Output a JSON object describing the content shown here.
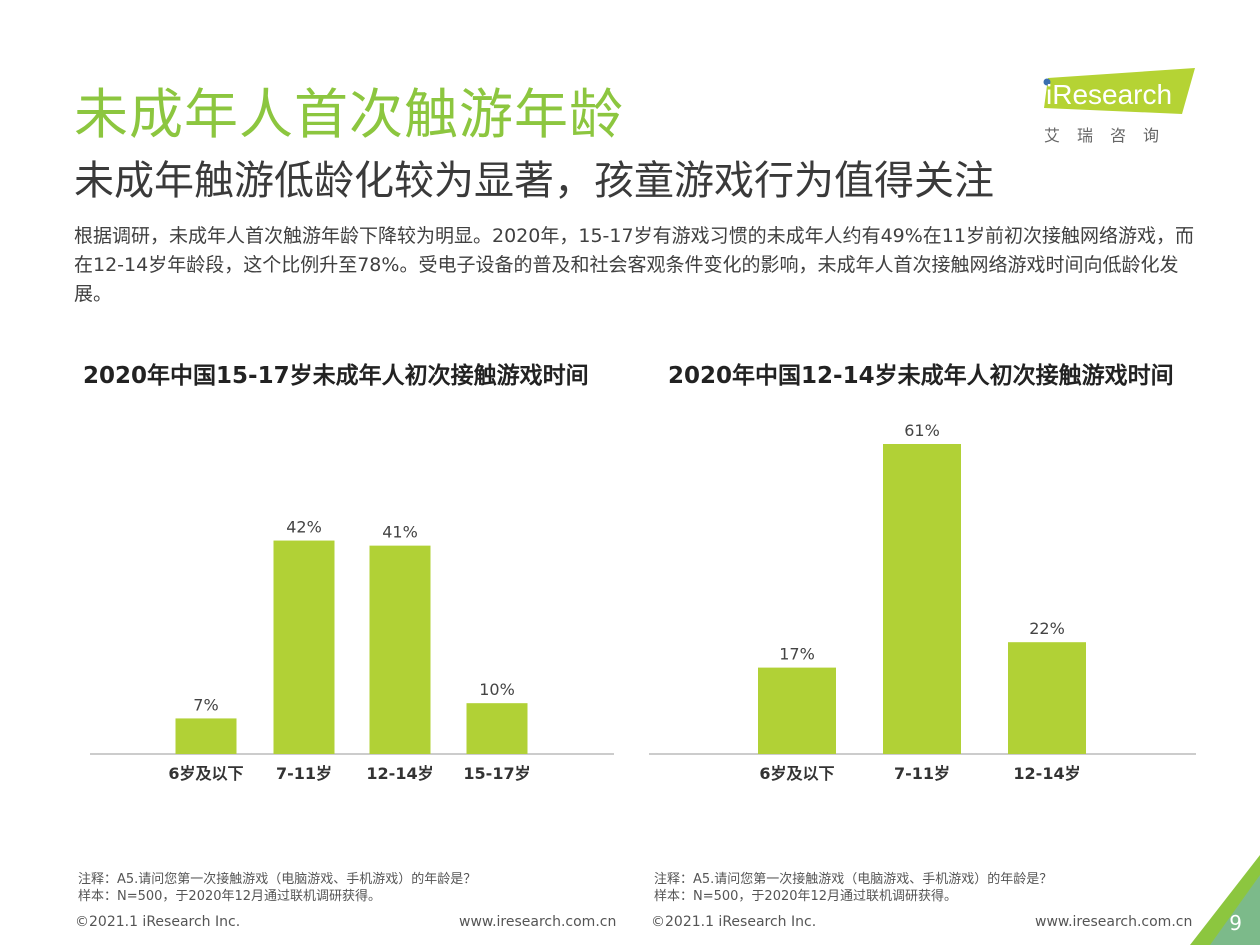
{
  "page": {
    "title": "未成年人首次触游年龄",
    "subtitle": "未成年触游低龄化较为显著，孩童游戏行为值得关注",
    "intro": "根据调研，未成年人首次触游年龄下降较为明显。2020年，15-17岁有游戏习惯的未成年人约有49%在11岁前初次接触网络游戏，而在12-14岁年龄段，这个比例升至78%。受电子设备的普及和社会客观条件变化的影响，未成年人首次接触网络游戏时间向低龄化发展。",
    "page_number": "9"
  },
  "logo": {
    "text": "iResearch",
    "sub": "艾瑞咨询",
    "color": "#b5d334"
  },
  "colors": {
    "accent": "#8cc63f",
    "bar": "#b1d136"
  },
  "chart_data": [
    {
      "type": "bar",
      "title": "2020年中国15-17岁未成年人初次接触游戏时间",
      "categories": [
        "6岁及以下",
        "7-11岁",
        "12-14岁",
        "15-17岁"
      ],
      "values": [
        7,
        42,
        41,
        10
      ],
      "labels": [
        "7%",
        "42%",
        "41%",
        "10%"
      ],
      "ylim": [
        0,
        61
      ],
      "note1": "注释：A5.请问您第一次接触游戏（电脑游戏、手机游戏）的年龄是？",
      "note2": "样本：N=500，于2020年12月通过联机调研获得。",
      "copyright": "©2021.1 iResearch Inc.",
      "website": "www.iresearch.com.cn"
    },
    {
      "type": "bar",
      "title": "2020年中国12-14岁未成年人初次接触游戏时间",
      "categories": [
        "6岁及以下",
        "7-11岁",
        "12-14岁"
      ],
      "values": [
        17,
        61,
        22
      ],
      "labels": [
        "17%",
        "61%",
        "22%"
      ],
      "ylim": [
        0,
        61
      ],
      "note1": "注释：A5.请问您第一次接触游戏（电脑游戏、手机游戏）的年龄是？",
      "note2": "样本：N=500，于2020年12月通过联机调研获得。",
      "copyright": "©2021.1 iResearch Inc.",
      "website": "www.iresearch.com.cn"
    }
  ]
}
